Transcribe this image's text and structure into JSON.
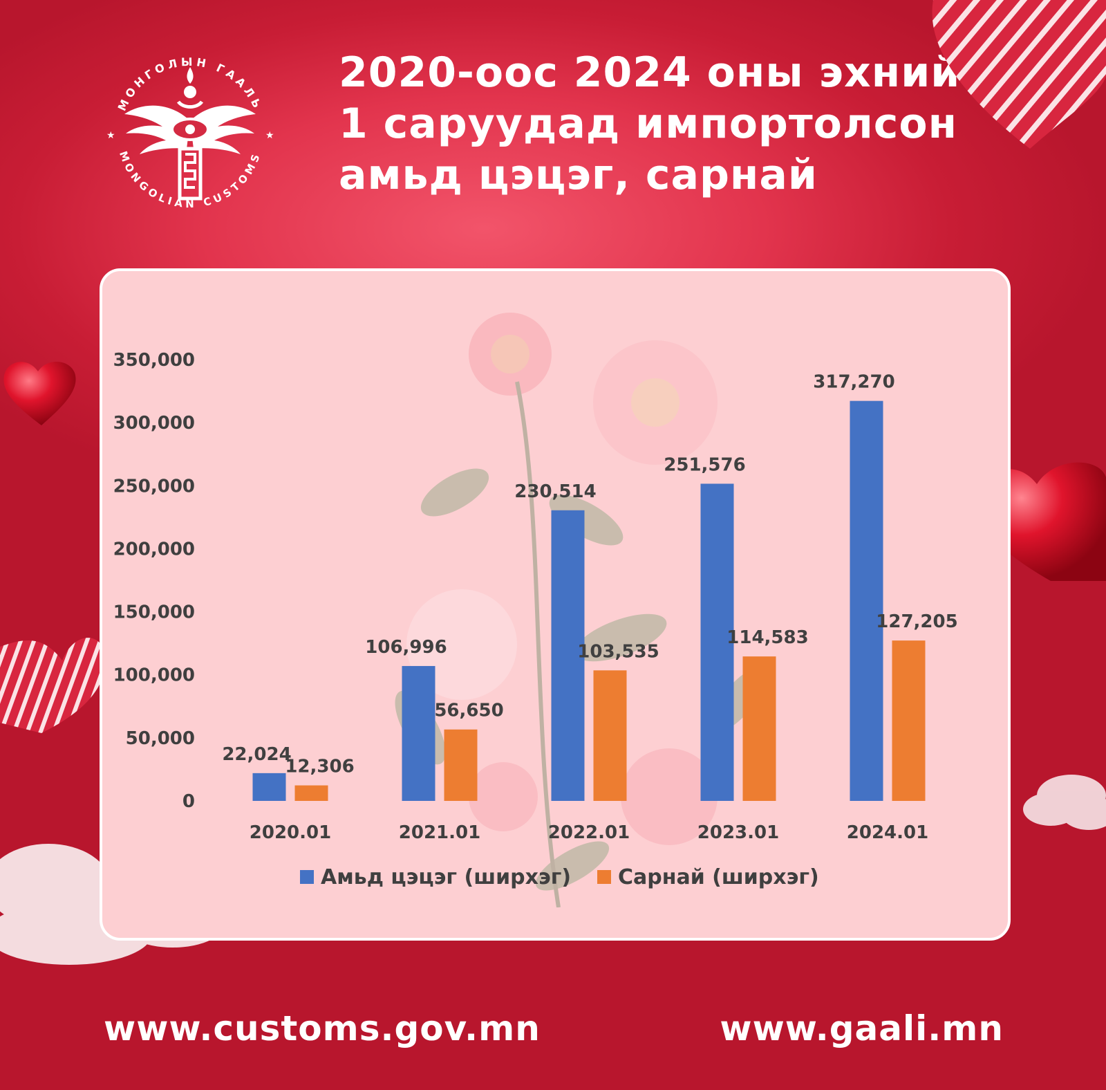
{
  "header": {
    "title_lines": [
      "2020-оос 2024 оны эхний",
      "1 саруудад импортолсон",
      "амьд цэцэг, сарнай"
    ]
  },
  "logo": {
    "text_top": "МОНГОЛЫН ГААЛЬ",
    "text_bottom": "MONGOLIAN CUSTOMS",
    "icon": "winged-eye-emblem-icon"
  },
  "footer": {
    "left_url": "www.customs.gov.mn",
    "right_url": "www.gaali.mn"
  },
  "decorations": [
    "heart-icon",
    "striped-heart-icon",
    "cloud-icon",
    "rose-flowers-icon"
  ],
  "colors": {
    "background": "#d42a42",
    "card": "#fdcfd2",
    "series1": "#4472c4",
    "series2": "#ed7d31"
  },
  "chart_data": {
    "type": "bar",
    "categories": [
      "2020.01",
      "2021.01",
      "2022.01",
      "2023.01",
      "2024.01"
    ],
    "series": [
      {
        "name": "Амьд цэцэг (ширхэг)",
        "color": "#4472c4",
        "values": [
          22024,
          106996,
          230514,
          251576,
          317270
        ],
        "labels": [
          "22,024",
          "106,996",
          "230,514",
          "251,576",
          "317,270"
        ]
      },
      {
        "name": "Сарнай (ширхэг)",
        "color": "#ed7d31",
        "values": [
          12306,
          56650,
          103535,
          114583,
          127205
        ],
        "labels": [
          "12,306",
          "56,650",
          "103,535",
          "114,583",
          "127,205"
        ]
      }
    ],
    "ylim": [
      0,
      350000
    ],
    "yticks": [
      0,
      50000,
      100000,
      150000,
      200000,
      250000,
      300000,
      350000
    ],
    "ytick_labels": [
      "0",
      "50,000",
      "100,000",
      "150,000",
      "200,000",
      "250,000",
      "300,000",
      "350,000"
    ],
    "grid": false,
    "legend": "bottom"
  }
}
